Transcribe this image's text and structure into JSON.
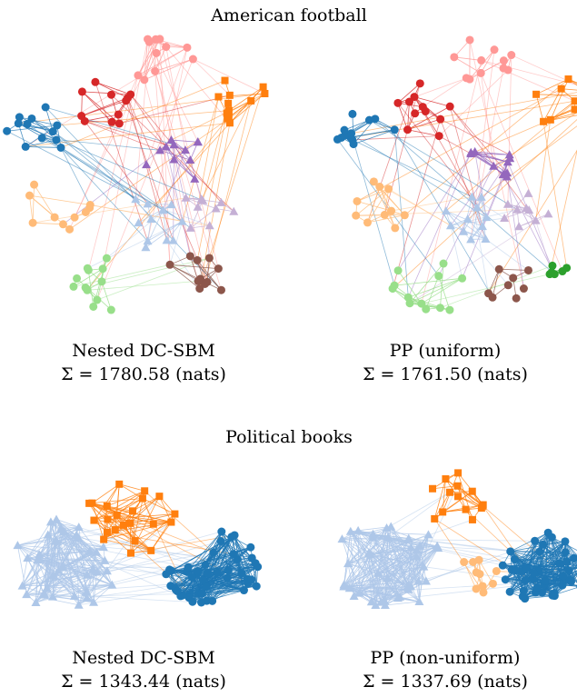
{
  "sections": [
    {
      "title": "American football",
      "panels": [
        {
          "method": "Nested DC-SBM",
          "description": "Σ = 1780.58 (nats)"
        },
        {
          "method": "PP (uniform)",
          "description": "Σ = 1761.50 (nats)"
        }
      ]
    },
    {
      "title": "Political books",
      "panels": [
        {
          "method": "Nested DC-SBM",
          "description": "Σ = 1343.44 (nats)"
        },
        {
          "method": "PP (non-uniform)",
          "description": "Σ = 1337.69 (nats)"
        }
      ]
    }
  ]
}
